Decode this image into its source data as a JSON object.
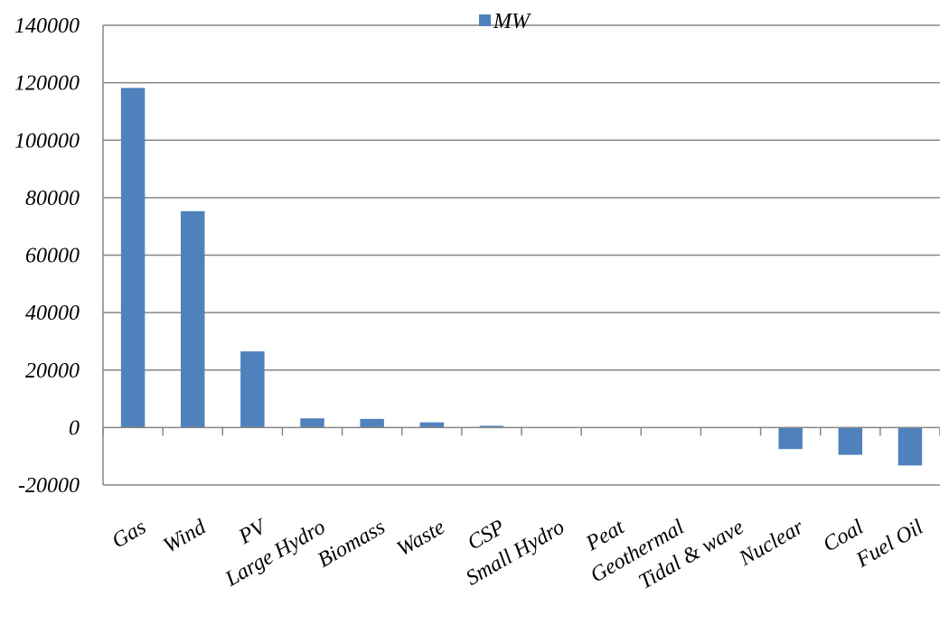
{
  "chart_data": {
    "type": "bar",
    "categories": [
      "Gas",
      "Wind",
      "PV",
      "Large Hydro",
      "Biomass",
      "Waste",
      "CSP",
      "Small Hydro",
      "Peat",
      "Geothermal",
      "Tidal & wave",
      "Nuclear",
      "Coal",
      "Fuel Oil"
    ],
    "series": [
      {
        "name": "MW",
        "values": [
          118200,
          75300,
          26500,
          3200,
          3000,
          1800,
          600,
          0,
          0,
          0,
          0,
          -7500,
          -9500,
          -13200
        ]
      }
    ],
    "title": "",
    "xlabel": "",
    "ylabel": "",
    "ylim": [
      -20000,
      140000
    ],
    "yticks": [
      "-20000",
      "0",
      "20000",
      "40000",
      "60000",
      "80000",
      "100000",
      "120000",
      "140000"
    ],
    "grid": true,
    "legend_position": "top",
    "colors": {
      "bar": "#4f81bd",
      "grid": "#868686",
      "axis": "#868686",
      "text": "#000000"
    }
  }
}
